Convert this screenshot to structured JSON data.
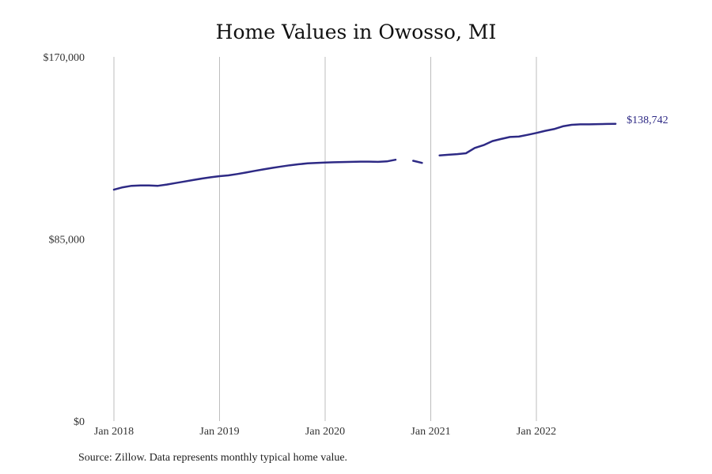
{
  "chart_data": {
    "type": "line",
    "title": "Home Values in Owosso, MI",
    "xlabel": "",
    "ylabel": "",
    "ylim": [
      0,
      170000
    ],
    "y_ticks": [
      {
        "value": 0,
        "label": "$0"
      },
      {
        "value": 85000,
        "label": "$85,000"
      },
      {
        "value": 170000,
        "label": "$170,000"
      }
    ],
    "x_ticks": [
      {
        "value": "2018-01",
        "label": "Jan 2018"
      },
      {
        "value": "2019-01",
        "label": "Jan 2019"
      },
      {
        "value": "2020-01",
        "label": "Jan 2020"
      },
      {
        "value": "2021-01",
        "label": "Jan 2021"
      },
      {
        "value": "2022-01",
        "label": "Jan 2022"
      }
    ],
    "grid": "vertical",
    "line_color": "#2e2a85",
    "end_label": "$138,742",
    "series": [
      {
        "x": [
          "2018-01",
          "2018-02",
          "2018-03",
          "2018-04",
          "2018-05",
          "2018-06",
          "2018-07",
          "2018-08",
          "2018-09",
          "2018-10",
          "2018-11",
          "2018-12",
          "2019-01",
          "2019-02",
          "2019-03",
          "2019-04",
          "2019-05",
          "2019-06",
          "2019-07",
          "2019-08",
          "2019-09",
          "2019-10",
          "2019-11",
          "2019-12",
          "2020-01",
          "2020-02",
          "2020-03",
          "2020-04",
          "2020-05",
          "2020-06",
          "2020-07",
          "2020-08",
          "2020-09",
          "2020-10",
          "2020-11",
          "2020-12",
          "2021-01",
          "2021-02",
          "2021-03",
          "2021-04",
          "2021-05",
          "2021-06",
          "2021-07",
          "2021-08",
          "2021-09",
          "2021-10",
          "2021-11",
          "2021-12",
          "2022-01",
          "2022-02",
          "2022-03",
          "2022-04",
          "2022-05",
          "2022-06",
          "2022-07",
          "2022-08",
          "2022-09",
          "2022-10"
        ],
        "values": [
          108000,
          109100,
          109800,
          110000,
          110000,
          109800,
          110400,
          111100,
          111800,
          112500,
          113200,
          113800,
          114300,
          114700,
          115300,
          116000,
          116800,
          117500,
          118200,
          118800,
          119400,
          119900,
          120300,
          120500,
          120700,
          120800,
          120900,
          121000,
          121100,
          121100,
          121000,
          121200,
          122000,
          null,
          121500,
          120500,
          null,
          124000,
          124300,
          124600,
          125000,
          127500,
          128800,
          130700,
          131700,
          132600,
          132800,
          133600,
          134500,
          135500,
          136300,
          137600,
          138300,
          138500,
          138500,
          138600,
          138700,
          138742
        ]
      }
    ]
  },
  "footer": {
    "source": "Source: Zillow. Data represents monthly typical home value."
  }
}
